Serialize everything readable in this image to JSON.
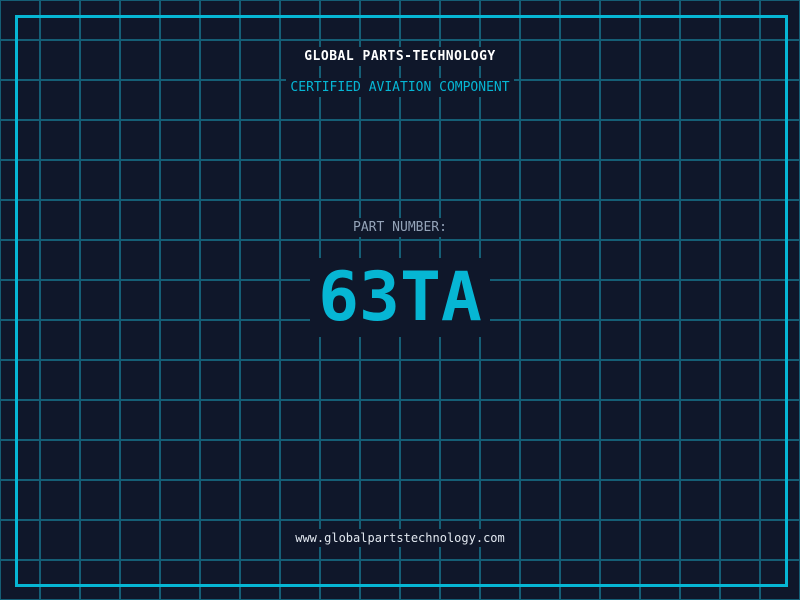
{
  "header": {
    "title": "GLOBAL PARTS-TECHNOLOGY",
    "subtitle": "CERTIFIED AVIATION COMPONENT"
  },
  "main": {
    "part_label": "PART NUMBER:",
    "part_number": "63TA"
  },
  "footer": {
    "url": "www.globalpartstechnology.com"
  },
  "colors": {
    "background": "#0f172a",
    "accent": "#06b6d4",
    "grid": "#155e75",
    "label": "#94a3b8"
  }
}
